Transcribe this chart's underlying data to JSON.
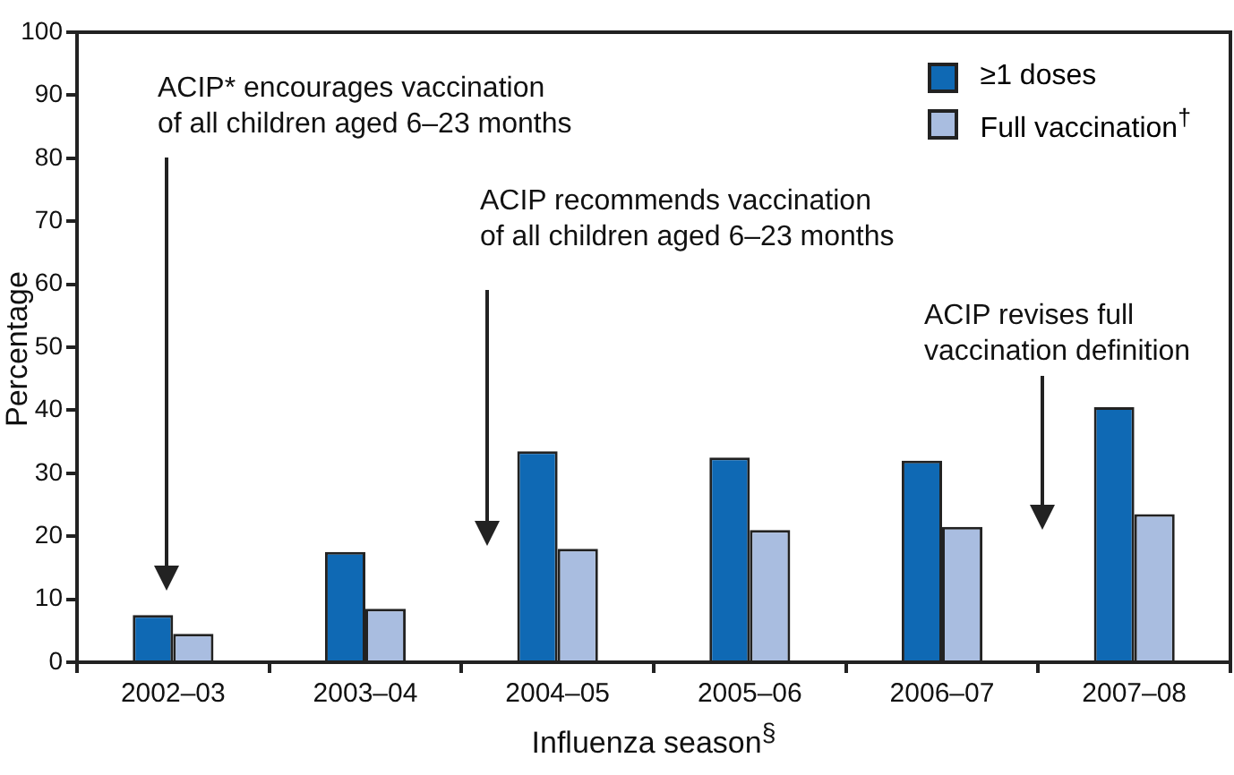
{
  "chart_data": {
    "type": "bar",
    "xlabel": "Influenza season$^{§}$",
    "ylabel": "Percentage",
    "categories": [
      "2002–03",
      "2003–04",
      "2004–05",
      "2005–06",
      "2006–07",
      "2007–08"
    ],
    "series": [
      {
        "name": "≥1 doses",
        "color": "#0f69b4",
        "values": [
          7.5,
          17.5,
          33.5,
          32.5,
          32,
          40.5
        ]
      },
      {
        "name": "Full vaccination$^{†}$",
        "color": "#a9bde0",
        "values": [
          4.5,
          8.5,
          18,
          21,
          21.5,
          23.5
        ]
      }
    ],
    "ylim": [
      0,
      100
    ],
    "yticks": [
      0,
      10,
      20,
      30,
      40,
      50,
      60,
      70,
      80,
      90,
      100
    ],
    "legend": "top right",
    "annotations": [
      "ACIP* encourages vaccination\nof all children aged 6–23 months",
      "ACIP recommends vaccination\nof all children aged 6–23 months",
      "ACIP revises full\nvaccination definition"
    ]
  }
}
